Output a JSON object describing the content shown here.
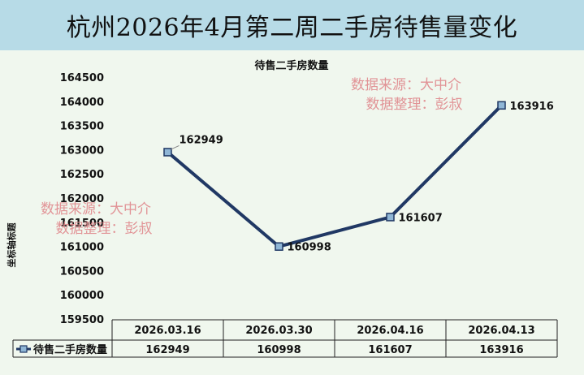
{
  "header": {
    "title": "杭州2026年4月第二周二手房待售量变化"
  },
  "chart_data": {
    "type": "line",
    "title": "待售二手房数量",
    "ylabel": "坐标轴标题",
    "xlabel": "",
    "categories": [
      "2026.03.16",
      "2026.03.30",
      "2026.04.16",
      "2026.04.13"
    ],
    "series": [
      {
        "name": "待售二手房数量",
        "values": [
          162949,
          160998,
          161607,
          163916
        ],
        "color": "#203864"
      }
    ],
    "ylim": [
      159500,
      164500
    ],
    "ytick_step": 500,
    "grid": false,
    "data_table": true,
    "data_labels": true
  },
  "watermarks": [
    {
      "lines": [
        "数据来源：大中介",
        "数据整理：彭叔"
      ]
    },
    {
      "lines": [
        "数据来源：大中介",
        "数据整理：彭叔"
      ]
    }
  ],
  "colors": {
    "title_bg": "#b7dbe7",
    "chart_bg": "#f0f7ee",
    "line": "#203864",
    "marker_fill": "#8fb6d6",
    "watermark": "#e0898d"
  }
}
